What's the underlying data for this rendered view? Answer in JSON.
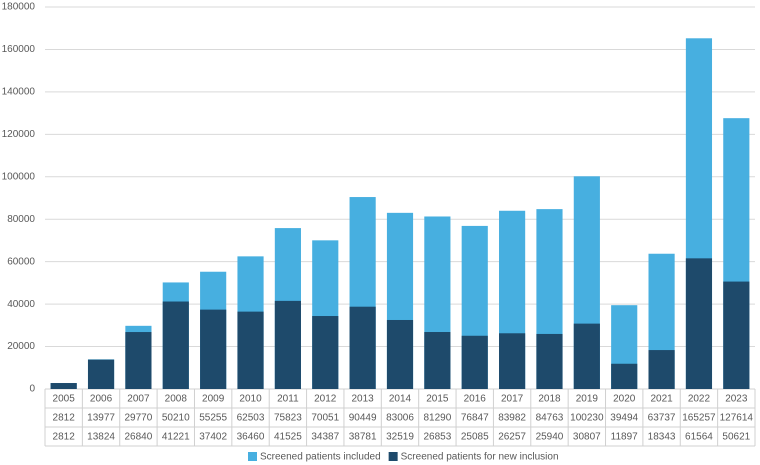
{
  "chart_data": {
    "type": "bar",
    "categories": [
      "2005",
      "2006",
      "2007",
      "2008",
      "2009",
      "2010",
      "2011",
      "2012",
      "2013",
      "2014",
      "2015",
      "2016",
      "2017",
      "2018",
      "2019",
      "2020",
      "2021",
      "2022",
      "2023"
    ],
    "series": [
      {
        "name": "Screened patients included",
        "color": "#47afe0",
        "values": [
          2812,
          13977,
          29770,
          50210,
          55255,
          62503,
          75823,
          70051,
          90449,
          83006,
          81290,
          76847,
          83982,
          84763,
          100230,
          39494,
          63737,
          165257,
          127614
        ]
      },
      {
        "name": "Screened patients for new inclusion",
        "color": "#1e4a6b",
        "values": [
          2812,
          13824,
          26840,
          41221,
          37402,
          36460,
          41525,
          34387,
          38781,
          32519,
          26853,
          25085,
          26257,
          25940,
          30807,
          11897,
          18343,
          61564,
          50621
        ]
      }
    ],
    "ylim": [
      0,
      180000
    ],
    "yticks": [
      0,
      20000,
      40000,
      60000,
      80000,
      100000,
      120000,
      140000,
      160000,
      180000
    ],
    "grid": true,
    "legend": "bottom"
  }
}
